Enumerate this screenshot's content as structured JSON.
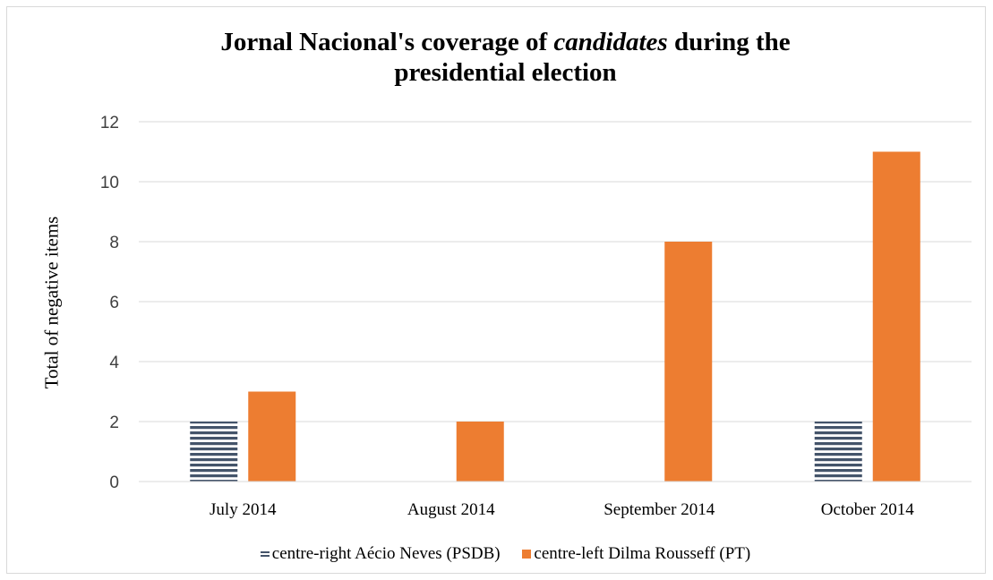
{
  "chart_data": {
    "type": "bar",
    "title": [
      "Jornal Nacional's coverage of ",
      "candidates",
      " during the",
      "presidential election"
    ],
    "ylabel": "Total of negative items",
    "xlabel": "",
    "categories": [
      "July 2014",
      "August 2014",
      "September 2014",
      "October 2014"
    ],
    "ylim": [
      0,
      12
    ],
    "yticks": [
      0,
      2,
      4,
      6,
      8,
      10,
      12
    ],
    "grid": true,
    "legend_position": "bottom",
    "series": [
      {
        "name": "centre-right Aécio Neves (PSDB)",
        "values": [
          2,
          0,
          0,
          2
        ],
        "color": "#44546a",
        "pattern": "horizontal-stripes"
      },
      {
        "name": "centre-left Dilma Rousseff  (PT)",
        "values": [
          3,
          2,
          8,
          11
        ],
        "color": "#ed7d31",
        "pattern": "solid"
      }
    ]
  }
}
